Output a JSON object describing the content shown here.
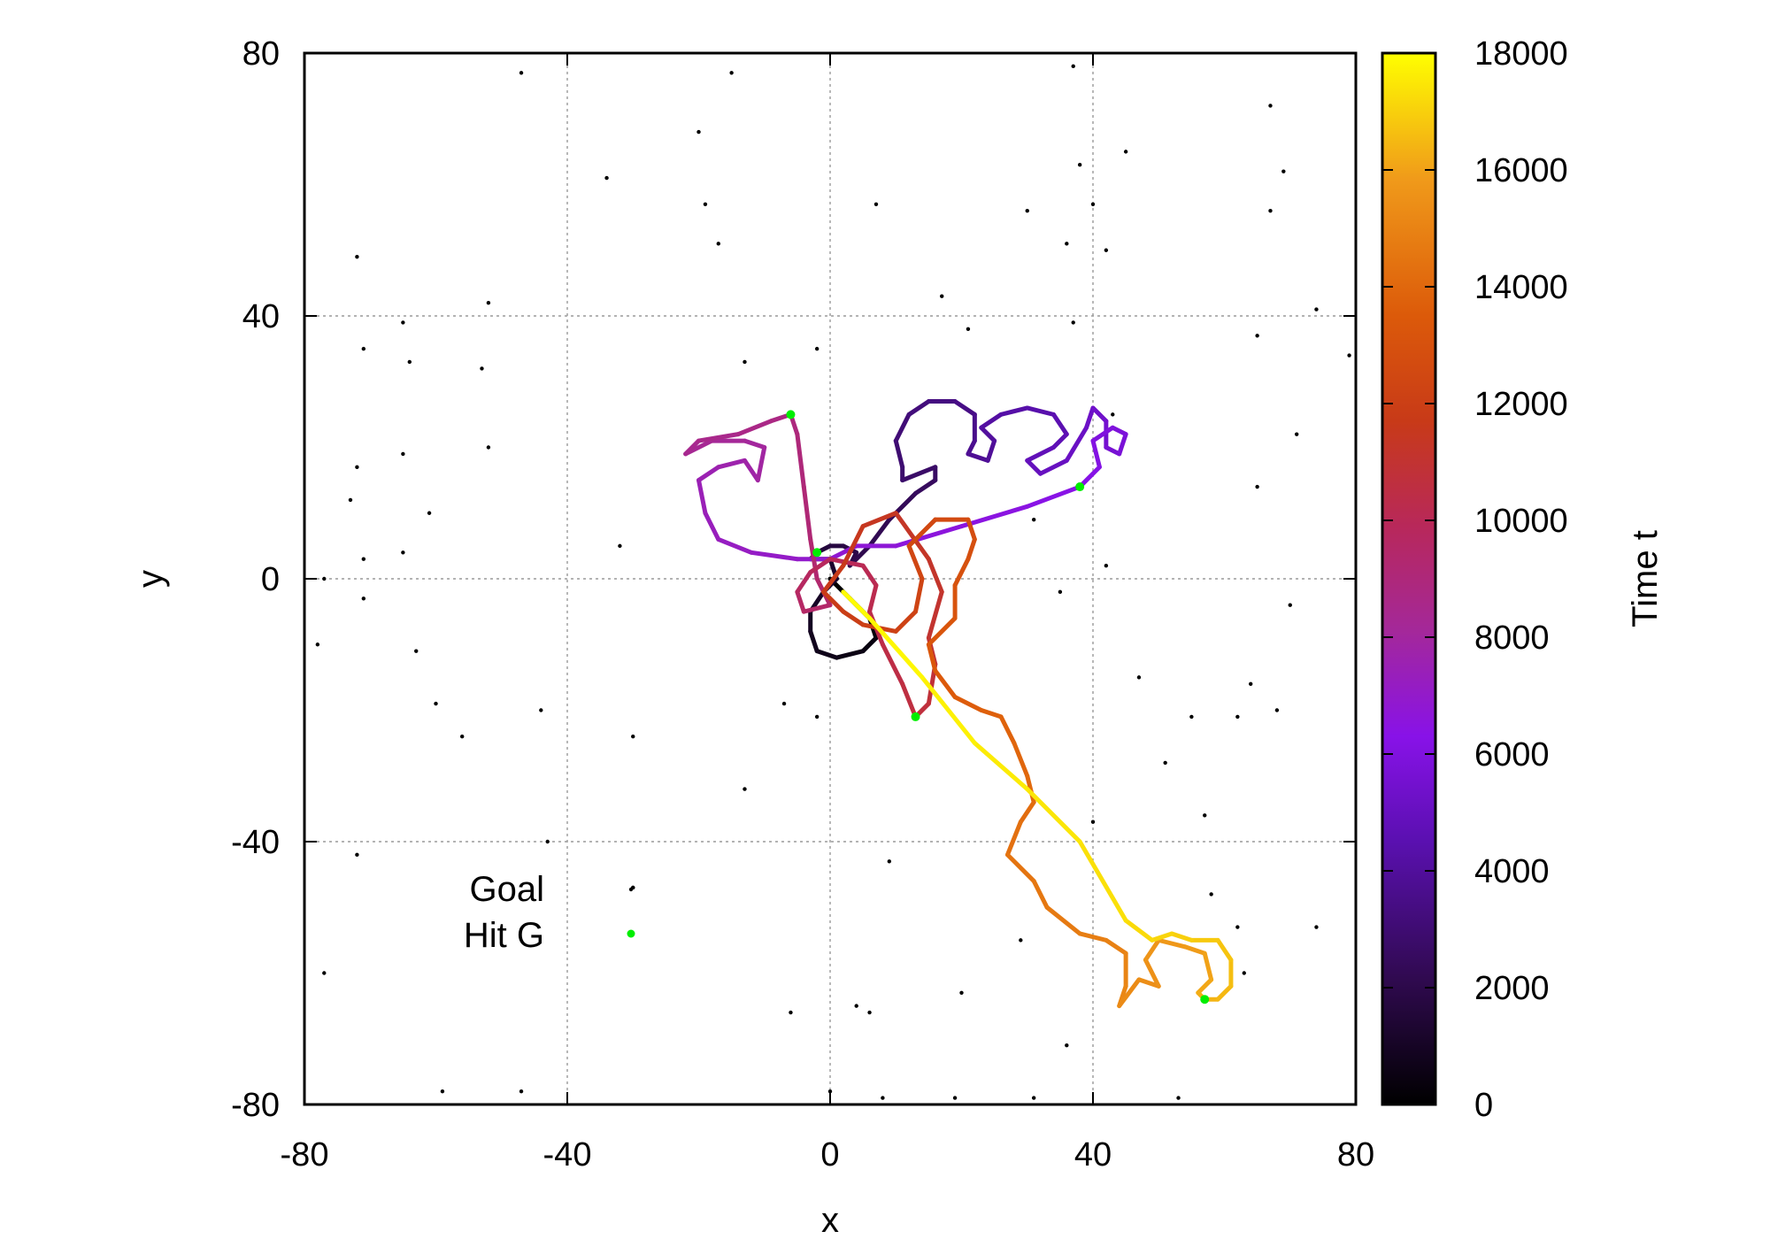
{
  "chart_data": {
    "type": "scatter",
    "title": "",
    "xlabel": "x",
    "ylabel": "y",
    "xlim": [
      -80,
      80
    ],
    "ylim": [
      -80,
      80
    ],
    "x_ticks": [
      "-80",
      "-40",
      "0",
      "40",
      "80"
    ],
    "y_ticks": [
      "80",
      "40",
      "0",
      "-40",
      "-80"
    ],
    "grid": true,
    "colorbar": {
      "label": "Time t",
      "range": [
        0,
        18000
      ],
      "ticks": [
        "18000",
        "16000",
        "14000",
        "12000",
        "10000",
        "8000",
        "6000",
        "4000",
        "2000",
        "0"
      ],
      "colormap": [
        "#000000",
        "#40106a",
        "#8812c8",
        "#b42a7a",
        "#cc3a0a",
        "#e07010",
        "#f0a020",
        "#ffff00"
      ]
    },
    "legend": {
      "position": "bottom-left",
      "entries": [
        {
          "label": "Goal",
          "color": "#000000"
        },
        {
          "label": "Hit G",
          "color": "#00ee00"
        }
      ]
    },
    "series": [
      {
        "name": "Goal",
        "color": "#000000",
        "points": [
          [
            -47,
            77
          ],
          [
            -15,
            77
          ],
          [
            37,
            78
          ],
          [
            67,
            72
          ],
          [
            -20,
            68
          ],
          [
            -34,
            61
          ],
          [
            38,
            63
          ],
          [
            45,
            65
          ],
          [
            69,
            62
          ],
          [
            -19,
            57
          ],
          [
            7,
            57
          ],
          [
            30,
            56
          ],
          [
            40,
            57
          ],
          [
            67,
            56
          ],
          [
            -17,
            51
          ],
          [
            36,
            51
          ],
          [
            42,
            50
          ],
          [
            -72,
            49
          ],
          [
            -52,
            42
          ],
          [
            17,
            43
          ],
          [
            74,
            41
          ],
          [
            -65,
            39
          ],
          [
            37,
            39
          ],
          [
            21,
            38
          ],
          [
            -71,
            35
          ],
          [
            -2,
            35
          ],
          [
            65,
            37
          ],
          [
            -64,
            33
          ],
          [
            -53,
            32
          ],
          [
            -13,
            33
          ],
          [
            79,
            34
          ],
          [
            -52,
            20
          ],
          [
            -65,
            19
          ],
          [
            -72,
            17
          ],
          [
            71,
            22
          ],
          [
            43,
            25
          ],
          [
            -73,
            12
          ],
          [
            -61,
            10
          ],
          [
            -65,
            4
          ],
          [
            -32,
            5
          ],
          [
            31,
            9
          ],
          [
            65,
            14
          ],
          [
            -71,
            3
          ],
          [
            -77,
            0
          ],
          [
            42,
            2
          ],
          [
            -71,
            -3
          ],
          [
            35,
            -2
          ],
          [
            70,
            -4
          ],
          [
            -78,
            -10
          ],
          [
            -63,
            -11
          ],
          [
            47,
            -15
          ],
          [
            64,
            -16
          ],
          [
            -60,
            -19
          ],
          [
            -44,
            -20
          ],
          [
            -7,
            -19
          ],
          [
            -2,
            -21
          ],
          [
            55,
            -21
          ],
          [
            62,
            -21
          ],
          [
            68,
            -20
          ],
          [
            -56,
            -24
          ],
          [
            -30,
            -24
          ],
          [
            51,
            -28
          ],
          [
            -13,
            -32
          ],
          [
            40,
            -37
          ],
          [
            57,
            -36
          ],
          [
            -43,
            -40
          ],
          [
            -72,
            -42
          ],
          [
            -30,
            -47
          ],
          [
            9,
            -43
          ],
          [
            58,
            -48
          ],
          [
            29,
            -55
          ],
          [
            62,
            -53
          ],
          [
            74,
            -53
          ],
          [
            -77,
            -60
          ],
          [
            63,
            -60
          ],
          [
            20,
            -63
          ],
          [
            -6,
            -66
          ],
          [
            4,
            -65
          ],
          [
            36,
            -71
          ],
          [
            -59,
            -78
          ],
          [
            -47,
            -78
          ],
          [
            0,
            -78
          ],
          [
            8,
            -79
          ],
          [
            19,
            -79
          ],
          [
            31,
            -79
          ],
          [
            53,
            -79
          ],
          [
            6,
            -66
          ],
          [
            -30,
            -47
          ]
        ]
      },
      {
        "name": "Hit G",
        "color": "#00ee00",
        "points": [
          [
            -6,
            25
          ],
          [
            38,
            14
          ],
          [
            -2,
            4
          ],
          [
            13,
            -21
          ],
          [
            57,
            -64
          ]
        ]
      }
    ],
    "trajectory": [
      {
        "t": 0,
        "x": 0,
        "y": 0
      },
      {
        "t": 180,
        "x": 3,
        "y": -3
      },
      {
        "t": 360,
        "x": 6,
        "y": -6
      },
      {
        "t": 540,
        "x": 7,
        "y": -9
      },
      {
        "t": 720,
        "x": 5,
        "y": -11
      },
      {
        "t": 900,
        "x": 1,
        "y": -12
      },
      {
        "t": 1080,
        "x": -2,
        "y": -11
      },
      {
        "t": 1260,
        "x": -3,
        "y": -8
      },
      {
        "t": 1440,
        "x": -3,
        "y": -5
      },
      {
        "t": 1620,
        "x": -1,
        "y": -2
      },
      {
        "t": 1800,
        "x": 1,
        "y": 0
      },
      {
        "t": 1980,
        "x": 0,
        "y": 3
      },
      {
        "t": 2160,
        "x": -3,
        "y": 3
      },
      {
        "t": 2340,
        "x": -2,
        "y": 4
      },
      {
        "t": 2520,
        "x": 0,
        "y": 5
      },
      {
        "t": 2700,
        "x": 2,
        "y": 5
      },
      {
        "t": 2880,
        "x": 4,
        "y": 4
      },
      {
        "t": 3060,
        "x": 3,
        "y": 2
      },
      {
        "t": 3240,
        "x": 6,
        "y": 5
      },
      {
        "t": 3420,
        "x": 9,
        "y": 9
      },
      {
        "t": 3600,
        "x": 13,
        "y": 13
      },
      {
        "t": 3780,
        "x": 16,
        "y": 15
      },
      {
        "t": 3960,
        "x": 16,
        "y": 17
      },
      {
        "t": 4140,
        "x": 11,
        "y": 15
      },
      {
        "t": 4320,
        "x": 11,
        "y": 17
      },
      {
        "t": 4500,
        "x": 10,
        "y": 21
      },
      {
        "t": 4680,
        "x": 12,
        "y": 25
      },
      {
        "t": 4860,
        "x": 15,
        "y": 27
      },
      {
        "t": 5040,
        "x": 19,
        "y": 27
      },
      {
        "t": 5220,
        "x": 22,
        "y": 25
      },
      {
        "t": 5400,
        "x": 22,
        "y": 21
      },
      {
        "t": 5580,
        "x": 21,
        "y": 19
      },
      {
        "t": 5760,
        "x": 24,
        "y": 18
      },
      {
        "t": 5940,
        "x": 25,
        "y": 21
      },
      {
        "t": 6120,
        "x": 23,
        "y": 23
      },
      {
        "t": 6300,
        "x": 26,
        "y": 25
      },
      {
        "t": 6480,
        "x": 30,
        "y": 26
      },
      {
        "t": 6660,
        "x": 34,
        "y": 25
      },
      {
        "t": 6840,
        "x": 36,
        "y": 22
      },
      {
        "t": 7020,
        "x": 34,
        "y": 20
      },
      {
        "t": 7200,
        "x": 30,
        "y": 18
      },
      {
        "t": 7380,
        "x": 32,
        "y": 16
      },
      {
        "t": 7560,
        "x": 36,
        "y": 18
      },
      {
        "t": 7740,
        "x": 39,
        "y": 23
      },
      {
        "t": 7920,
        "x": 40,
        "y": 26
      },
      {
        "t": 8100,
        "x": 42,
        "y": 24
      },
      {
        "t": 8280,
        "x": 42,
        "y": 20
      },
      {
        "t": 8460,
        "x": 44,
        "y": 19
      },
      {
        "t": 8640,
        "x": 45,
        "y": 22
      },
      {
        "t": 8820,
        "x": 43,
        "y": 23
      },
      {
        "t": 9000,
        "x": 40,
        "y": 21
      },
      {
        "t": 9180,
        "x": 41,
        "y": 17
      },
      {
        "t": 9360,
        "x": 38,
        "y": 14
      },
      {
        "t": 9540,
        "x": 30,
        "y": 11
      },
      {
        "t": 9720,
        "x": 20,
        "y": 8
      },
      {
        "t": 9900,
        "x": 10,
        "y": 5
      },
      {
        "t": 10080,
        "x": 4,
        "y": 5
      },
      {
        "t": 10260,
        "x": 0,
        "y": 3
      },
      {
        "t": 10440,
        "x": -5,
        "y": 3
      },
      {
        "t": 10620,
        "x": -12,
        "y": 4
      },
      {
        "t": 10800,
        "x": -17,
        "y": 6
      },
      {
        "t": 10980,
        "x": -19,
        "y": 10
      },
      {
        "t": 11160,
        "x": -20,
        "y": 15
      },
      {
        "t": 11340,
        "x": -17,
        "y": 17
      },
      {
        "t": 11520,
        "x": -13,
        "y": 18
      },
      {
        "t": 11700,
        "x": -11,
        "y": 15
      },
      {
        "t": 11880,
        "x": -10,
        "y": 20
      },
      {
        "t": 12060,
        "x": -13,
        "y": 21
      },
      {
        "t": 12240,
        "x": -18,
        "y": 21
      },
      {
        "t": 12420,
        "x": -22,
        "y": 19
      },
      {
        "t": 12600,
        "x": -20,
        "y": 21
      },
      {
        "t": 12780,
        "x": -14,
        "y": 22
      },
      {
        "t": 12960,
        "x": -9,
        "y": 24
      },
      {
        "t": 13140,
        "x": -6,
        "y": 25
      },
      {
        "t": 13320,
        "x": -5,
        "y": 22
      },
      {
        "t": 13500,
        "x": -4,
        "y": 14
      },
      {
        "t": 13680,
        "x": -3,
        "y": 6
      },
      {
        "t": 13860,
        "x": -2,
        "y": 0
      },
      {
        "t": 14040,
        "x": 0,
        "y": -4
      },
      {
        "t": 14220,
        "x": -4,
        "y": -5
      },
      {
        "t": 14400,
        "x": -5,
        "y": -2
      },
      {
        "t": 14580,
        "x": -3,
        "y": 1
      },
      {
        "t": 14760,
        "x": 0,
        "y": 3
      },
      {
        "t": 14940,
        "x": 5,
        "y": 2
      },
      {
        "t": 15120,
        "x": 7,
        "y": -1
      },
      {
        "t": 15300,
        "x": 6,
        "y": -5
      },
      {
        "t": 15480,
        "x": 8,
        "y": -10
      },
      {
        "t": 15660,
        "x": 11,
        "y": -16
      },
      {
        "t": 15840,
        "x": 13,
        "y": -21
      },
      {
        "t": 16020,
        "x": 15,
        "y": -19
      },
      {
        "t": 16200,
        "x": 16,
        "y": -13
      },
      {
        "t": 16380,
        "x": 15,
        "y": -9
      },
      {
        "t": 16560,
        "x": 17,
        "y": -2
      },
      {
        "t": 16740,
        "x": 15,
        "y": 3
      },
      {
        "t": 16920,
        "x": 10,
        "y": 10
      },
      {
        "t": 17100,
        "x": 5,
        "y": 8
      },
      {
        "t": 17280,
        "x": 2,
        "y": 2
      },
      {
        "t": 17460,
        "x": -1,
        "y": -2
      },
      {
        "t": 17640,
        "x": 2,
        "y": -5
      },
      {
        "t": 17820,
        "x": 5,
        "y": -7
      },
      {
        "t": 18000,
        "x": 10,
        "y": -8
      },
      {
        "t": 18180,
        "x": 13,
        "y": -5
      },
      {
        "t": 18360,
        "x": 14,
        "y": 0
      },
      {
        "t": 18540,
        "x": 12,
        "y": 5
      },
      {
        "t": 18720,
        "x": 16,
        "y": 9
      },
      {
        "t": 18900,
        "x": 21,
        "y": 9
      },
      {
        "t": 19080,
        "x": 22,
        "y": 6
      },
      {
        "t": 19260,
        "x": 21,
        "y": 3
      },
      {
        "t": 19440,
        "x": 19,
        "y": -1
      },
      {
        "t": 19620,
        "x": 19,
        "y": -6
      },
      {
        "t": 19800,
        "x": 15,
        "y": -10
      },
      {
        "t": 19980,
        "x": 16,
        "y": -14
      },
      {
        "t": 20160,
        "x": 19,
        "y": -18
      },
      {
        "t": 20340,
        "x": 23,
        "y": -20
      },
      {
        "t": 20520,
        "x": 26,
        "y": -21
      },
      {
        "t": 20700,
        "x": 28,
        "y": -25
      },
      {
        "t": 20880,
        "x": 30,
        "y": -30
      },
      {
        "t": 21060,
        "x": 31,
        "y": -34
      },
      {
        "t": 21240,
        "x": 29,
        "y": -37
      },
      {
        "t": 21420,
        "x": 27,
        "y": -42
      },
      {
        "t": 21600,
        "x": 31,
        "y": -46
      },
      {
        "t": 21780,
        "x": 33,
        "y": -50
      },
      {
        "t": 21960,
        "x": 38,
        "y": -54
      },
      {
        "t": 22140,
        "x": 42,
        "y": -55
      },
      {
        "t": 22320,
        "x": 45,
        "y": -57
      },
      {
        "t": 22500,
        "x": 45,
        "y": -62
      },
      {
        "t": 22680,
        "x": 44,
        "y": -65
      },
      {
        "t": 22860,
        "x": 47,
        "y": -61
      },
      {
        "t": 23040,
        "x": 50,
        "y": -62
      },
      {
        "t": 23220,
        "x": 48,
        "y": -58
      },
      {
        "t": 23400,
        "x": 50,
        "y": -55
      },
      {
        "t": 23580,
        "x": 54,
        "y": -56
      },
      {
        "t": 23760,
        "x": 57,
        "y": -57
      },
      {
        "t": 23940,
        "x": 58,
        "y": -61
      },
      {
        "t": 24120,
        "x": 56,
        "y": -63
      },
      {
        "t": 24300,
        "x": 57,
        "y": -64
      },
      {
        "t": 24480,
        "x": 59,
        "y": -64
      },
      {
        "t": 24660,
        "x": 61,
        "y": -62
      },
      {
        "t": 24840,
        "x": 61,
        "y": -58
      },
      {
        "t": 25020,
        "x": 59,
        "y": -55
      },
      {
        "t": 25200,
        "x": 55,
        "y": -55
      },
      {
        "t": 25380,
        "x": 52,
        "y": -54
      },
      {
        "t": 25560,
        "x": 49,
        "y": -55
      },
      {
        "t": 25740,
        "x": 45,
        "y": -52
      },
      {
        "t": 25920,
        "x": 38,
        "y": -40
      },
      {
        "t": 26100,
        "x": 30,
        "y": -32
      },
      {
        "t": 26280,
        "x": 22,
        "y": -25
      },
      {
        "t": 26460,
        "x": 14,
        "y": -15
      },
      {
        "t": 26640,
        "x": 6,
        "y": -6
      },
      {
        "t": 26820,
        "x": 2,
        "y": -2
      }
    ]
  }
}
